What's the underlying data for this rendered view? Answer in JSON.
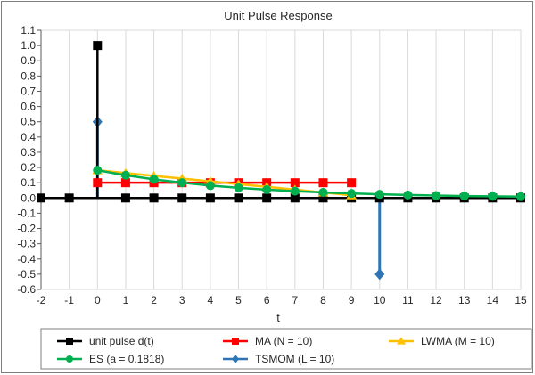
{
  "chart_data": {
    "type": "line",
    "title": "Unit Pulse Response",
    "xlabel": "t",
    "ylabel": "",
    "xlim": [
      -2,
      15
    ],
    "ylim": [
      -0.6,
      1.1
    ],
    "x_ticks": [
      -2,
      -1,
      0,
      1,
      2,
      3,
      4,
      5,
      6,
      7,
      8,
      9,
      10,
      11,
      12,
      13,
      14,
      15
    ],
    "y_ticks": [
      -0.6,
      -0.5,
      -0.4,
      -0.3,
      -0.2,
      -0.1,
      0.0,
      0.1,
      0.2,
      0.3,
      0.4,
      0.5,
      0.6,
      0.7,
      0.8,
      0.9,
      1.0,
      1.1
    ],
    "y_tick_labels": [
      "-0.6",
      "-0.5",
      "-0.4",
      "-0.3",
      "-0.2",
      "-0.1",
      "0.0",
      "0.1",
      "0.2",
      "0.3",
      "0.4",
      "0.5",
      "0.6",
      "0.7",
      "0.8",
      "0.9",
      "1.0",
      "1.1"
    ],
    "grid": "vertical",
    "legend_position": "bottom",
    "series": [
      {
        "name": "unit pulse d(t)",
        "color": "#000000",
        "marker": "square",
        "style": "stem",
        "x": [
          -2,
          -1,
          0,
          1,
          2,
          3,
          4,
          5,
          6,
          7,
          8,
          9,
          10,
          11,
          12,
          13,
          14,
          15
        ],
        "y": [
          0,
          0,
          1,
          0,
          0,
          0,
          0,
          0,
          0,
          0,
          0,
          0,
          0,
          0,
          0,
          0,
          0,
          0
        ]
      },
      {
        "name": "MA (N = 10)",
        "color": "#ff0000",
        "marker": "square",
        "style": "line",
        "x": [
          0,
          1,
          2,
          3,
          4,
          5,
          6,
          7,
          8,
          9
        ],
        "y": [
          0.1,
          0.1,
          0.1,
          0.1,
          0.1,
          0.1,
          0.1,
          0.1,
          0.1,
          0.1
        ]
      },
      {
        "name": "LWMA (M = 10)",
        "color": "#ffc000",
        "marker": "triangle",
        "style": "line",
        "x": [
          0,
          1,
          2,
          3,
          4,
          5,
          6,
          7,
          8,
          9
        ],
        "y": [
          0.182,
          0.164,
          0.145,
          0.127,
          0.109,
          0.091,
          0.073,
          0.055,
          0.036,
          0.018
        ]
      },
      {
        "name": "ES (a = 0.1818)",
        "color": "#00b050",
        "marker": "circle",
        "style": "line",
        "x": [
          0,
          1,
          2,
          3,
          4,
          5,
          6,
          7,
          8,
          9,
          10,
          11,
          12,
          13,
          14,
          15
        ],
        "y": [
          0.182,
          0.149,
          0.122,
          0.1,
          0.081,
          0.067,
          0.055,
          0.045,
          0.037,
          0.03,
          0.024,
          0.02,
          0.016,
          0.013,
          0.011,
          0.009
        ]
      },
      {
        "name": "TSMOM (L = 10)",
        "color": "#2e75b6",
        "marker": "diamond",
        "style": "stem",
        "x": [
          0,
          10
        ],
        "y": [
          0.5,
          -0.5
        ]
      }
    ]
  }
}
